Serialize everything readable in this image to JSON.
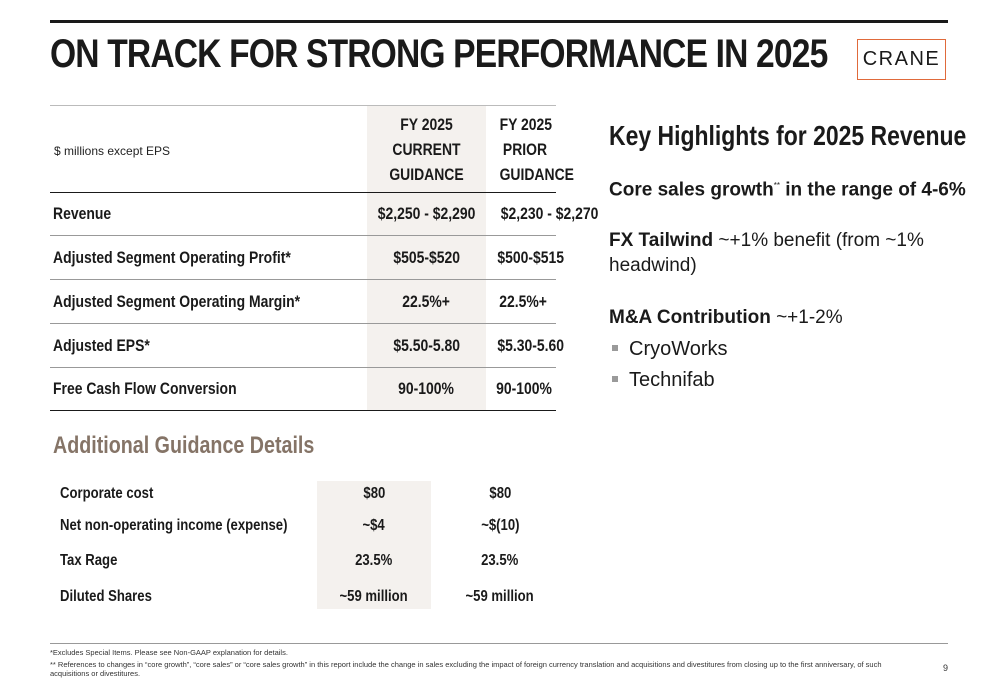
{
  "title": "ON TRACK FOR STRONG PERFORMANCE IN 2025",
  "logo_text": "CRANE",
  "colors": {
    "accent": "#e06a3b",
    "shade": "#f4f1ee",
    "subheading": "#857467"
  },
  "main_table": {
    "units_label": "$ millions except EPS",
    "col1": [
      "FY 2025",
      "CURRENT",
      "GUIDANCE"
    ],
    "col2": [
      "FY 2025",
      "PRIOR",
      "GUIDANCE"
    ],
    "rows": [
      {
        "label": "Revenue",
        "current": "$2,250 - $2,290",
        "prior": "$2,230 - $2,270"
      },
      {
        "label": "Adjusted Segment Operating Profit*",
        "current": "$505-$520",
        "prior": "$500-$515"
      },
      {
        "label": "Adjusted Segment Operating Margin*",
        "current": "22.5%+",
        "prior": "22.5%+"
      },
      {
        "label": "Adjusted EPS*",
        "current": "$5.50-5.80",
        "prior": "$5.30-5.60"
      },
      {
        "label": "Free Cash Flow Conversion",
        "current": "90-100%",
        "prior": "90-100%"
      }
    ]
  },
  "additional": {
    "title": "Additional Guidance Details",
    "rows": [
      {
        "label": "Corporate cost",
        "current": "$80",
        "prior": "$80"
      },
      {
        "label": "Net non-operating income (expense)",
        "current": "~$4",
        "prior": "~$(10)"
      },
      {
        "label": "Tax Rage",
        "current": "23.5%",
        "prior": "23.5%"
      },
      {
        "label": "Diluted Shares",
        "current": "~59 million",
        "prior": "~59 million"
      }
    ]
  },
  "highlights": {
    "title": "Key Highlights for 2025 Revenue",
    "core_a": "Core sales growth",
    "core_sup": "**",
    "core_b": " in the range of 4-6%",
    "fx_bold": "FX Tailwind",
    "fx_rest": " ~+1% benefit (from ~1%",
    "fx_rest2": "headwind)",
    "ma_bold": "M&A Contribution",
    "ma_rest": " ~+1-2%",
    "bullets": [
      "CryoWorks",
      "Technifab"
    ]
  },
  "footnotes": {
    "f1": "*Excludes Special Items. Please see Non-GAAP explanation for details.",
    "f2": "** References to changes in “core growth”, “core sales” or “core sales growth” in this report include the change in sales excluding the impact of foreign currency translation and acquisitions and divestitures from closing up to the first anniversary, of such acquisitions or divestitures."
  },
  "page_number": "9"
}
